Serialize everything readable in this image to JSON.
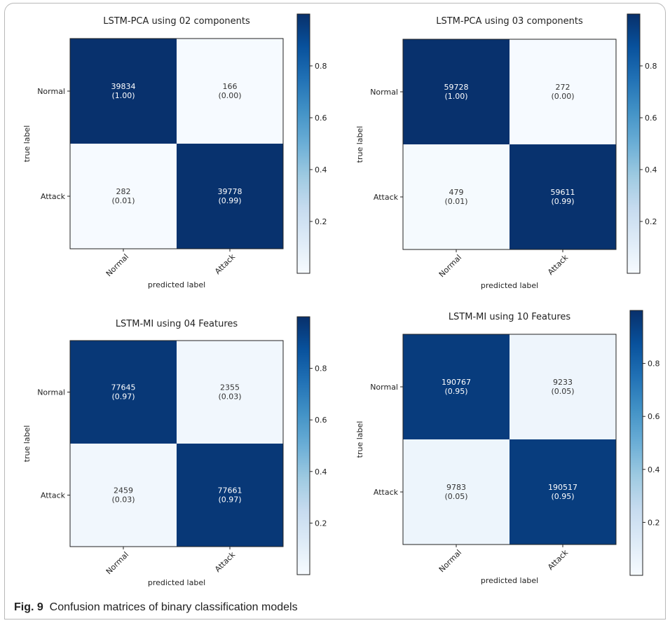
{
  "caption": {
    "label": "Fig. 9",
    "text": "Confusion matrices of binary classification models"
  },
  "colors": {
    "dark": "#08306b",
    "light": "#f7fbff",
    "text_on_dark": "#ffffff",
    "text_on_light": "#333333"
  },
  "chart_data": [
    {
      "type": "heatmap",
      "title": "LSTM-PCA using 02 components",
      "xlabel": "predicted label",
      "ylabel": "true label",
      "x_categories": [
        "Normal",
        "Attack"
      ],
      "y_categories": [
        "Normal",
        "Attack"
      ],
      "counts": [
        [
          39834,
          166
        ],
        [
          282,
          39778
        ]
      ],
      "cell_labels": [
        [
          "39834",
          "166"
        ],
        [
          "282",
          "39778"
        ]
      ],
      "fractions": [
        [
          "(1.00)",
          "(0.00)"
        ],
        [
          "(0.01)",
          "(0.99)"
        ]
      ],
      "colorbar": {
        "range": [
          0,
          1
        ],
        "ticks": [
          "0.2",
          "0.4",
          "0.6",
          "0.8"
        ]
      }
    },
    {
      "type": "heatmap",
      "title": "LSTM-PCA using 03 components",
      "xlabel": "predicted label",
      "ylabel": "true label",
      "x_categories": [
        "Normal",
        "Attack"
      ],
      "y_categories": [
        "Normal",
        "Attack"
      ],
      "counts": [
        [
          59728,
          272
        ],
        [
          479,
          59611
        ]
      ],
      "cell_labels": [
        [
          "59728",
          "272"
        ],
        [
          "479",
          "59611"
        ]
      ],
      "fractions": [
        [
          "(1.00)",
          "(0.00)"
        ],
        [
          "(0.01)",
          "(0.99)"
        ]
      ],
      "colorbar": {
        "range": [
          0,
          1
        ],
        "ticks": [
          "0.2",
          "0.4",
          "0.6",
          "0.8"
        ]
      }
    },
    {
      "type": "heatmap",
      "title": "LSTM-MI using 04 Features",
      "xlabel": "predicted label",
      "ylabel": "true label",
      "x_categories": [
        "Normal",
        "Attack"
      ],
      "y_categories": [
        "Normal",
        "Attack"
      ],
      "counts": [
        [
          77645,
          2355
        ],
        [
          2459,
          77661
        ]
      ],
      "cell_labels": [
        [
          "77645",
          "2355"
        ],
        [
          "2459",
          "77661"
        ]
      ],
      "fractions": [
        [
          "(0.97)",
          "(0.03)"
        ],
        [
          "(0.03)",
          "(0.97)"
        ]
      ],
      "colorbar": {
        "range": [
          0,
          1
        ],
        "ticks": [
          "0.2",
          "0.4",
          "0.6",
          "0.8"
        ]
      }
    },
    {
      "type": "heatmap",
      "title": "LSTM-MI using 10 Features",
      "xlabel": "predicted label",
      "ylabel": "true label",
      "x_categories": [
        "Normal",
        "Attack"
      ],
      "y_categories": [
        "Normal",
        "Attack"
      ],
      "counts": [
        [
          190767,
          9233
        ],
        [
          9783,
          190517
        ]
      ],
      "cell_labels": [
        [
          "190767",
          "9233"
        ],
        [
          "9783",
          "190517"
        ]
      ],
      "fractions": [
        [
          "(0.95)",
          "(0.05)"
        ],
        [
          "(0.05)",
          "(0.95)"
        ]
      ],
      "colorbar": {
        "range": [
          0,
          1
        ],
        "ticks": [
          "0.2",
          "0.4",
          "0.6",
          "0.8"
        ]
      }
    }
  ]
}
